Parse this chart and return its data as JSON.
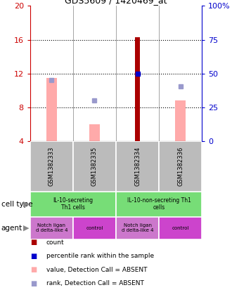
{
  "title": "GDS5609 / 1420469_at",
  "samples": [
    "GSM1382333",
    "GSM1382335",
    "GSM1382334",
    "GSM1382336"
  ],
  "ylim": [
    4,
    20
  ],
  "y_left_ticks": [
    4,
    8,
    12,
    16,
    20
  ],
  "y_right_labels": [
    "0",
    "25",
    "50",
    "75",
    "100%"
  ],
  "dotted_lines": [
    8,
    12,
    16
  ],
  "bars_absent_value": [
    11.5,
    6.0,
    null,
    8.8
  ],
  "bars_count": [
    null,
    null,
    16.3,
    null
  ],
  "dots_rank_on_bar": [
    11.2,
    null,
    null,
    null
  ],
  "dots_percentile": [
    null,
    null,
    12.0,
    null
  ],
  "dots_rank_absent": [
    null,
    8.8,
    null,
    10.5
  ],
  "bar_color_absent_value": "#ffaaaa",
  "bar_color_count": "#aa0000",
  "dot_color_percentile": "#0000cc",
  "dot_color_rank_absent": "#9999cc",
  "bg_color_samples": "#bbbbbb",
  "left_axis_color": "#cc0000",
  "right_axis_color": "#0000cc",
  "bar_ybase": 4,
  "cell_type_color": "#77dd77",
  "agent_notch_color": "#cc77cc",
  "agent_control_color": "#cc44cc",
  "cell_type_labels": [
    "IL-10-secreting\nTh1 cells",
    "IL-10-non-secreting Th1\ncells"
  ],
  "agent_labels": [
    "Notch ligan\nd delta-like 4",
    "control",
    "Notch ligan\nd delta-like 4",
    "control"
  ],
  "legend_items": [
    {
      "label": "count",
      "color": "#aa0000"
    },
    {
      "label": "percentile rank within the sample",
      "color": "#0000cc"
    },
    {
      "label": "value, Detection Call = ABSENT",
      "color": "#ffaaaa"
    },
    {
      "label": "rank, Detection Call = ABSENT",
      "color": "#9999cc"
    }
  ]
}
